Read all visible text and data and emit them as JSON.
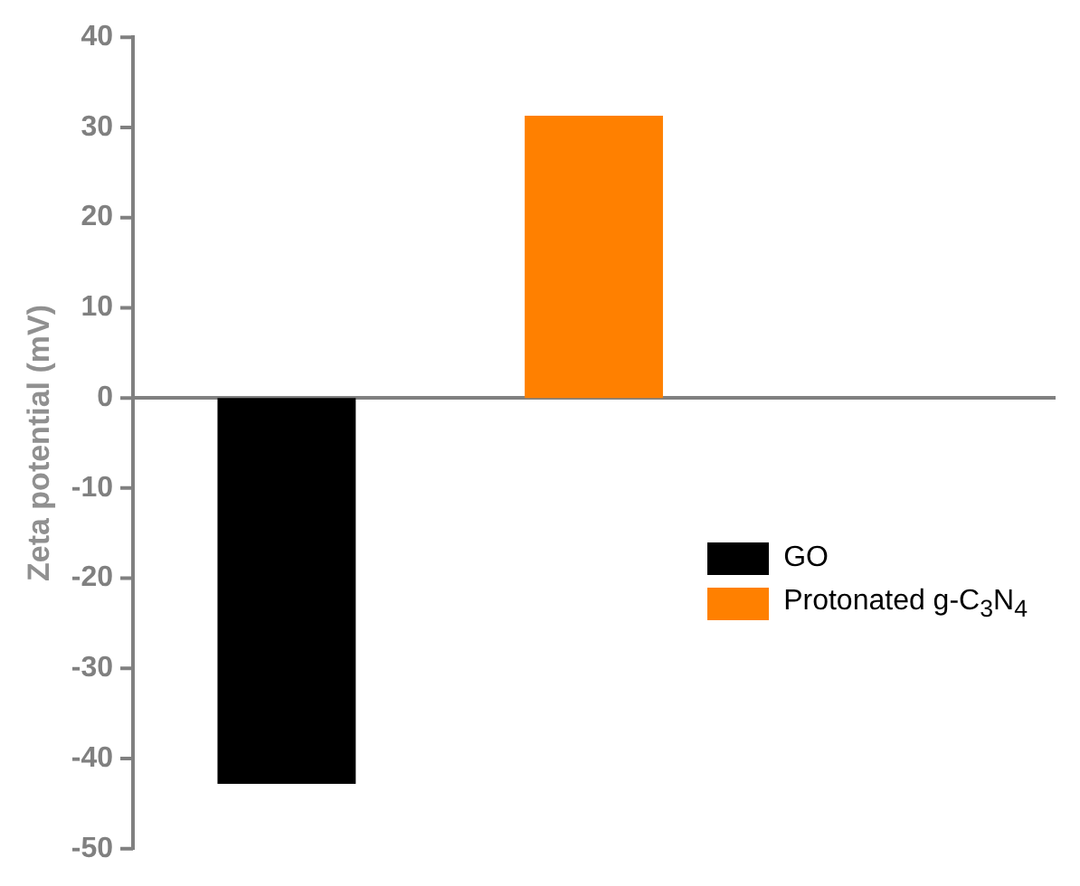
{
  "chart_data": {
    "type": "bar",
    "ylabel": "Zeta potential (mV)",
    "categories": [
      null,
      null,
      null
    ],
    "series": [
      {
        "name": "GO",
        "color": "#000000",
        "values": [
          -42.8,
          null,
          null
        ]
      },
      {
        "name": "Protonated g-C$_{3}$N$_{4}$",
        "color": "#ff8000",
        "values": [
          null,
          31.3,
          null
        ]
      }
    ],
    "ylim": [
      -50,
      40
    ],
    "yticks": [
      -50,
      -40,
      -30,
      -20,
      -10,
      0,
      10,
      20,
      30,
      40
    ],
    "legend": "right",
    "tick_labels": "y"
  }
}
